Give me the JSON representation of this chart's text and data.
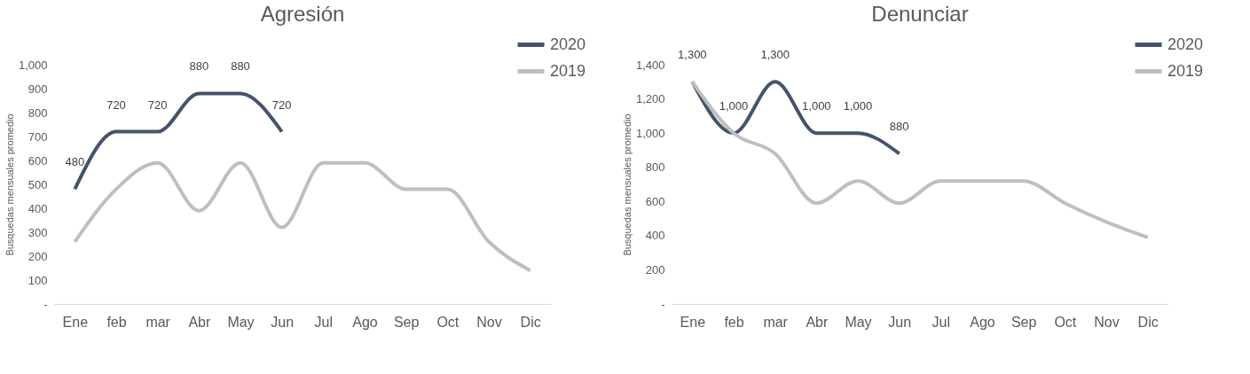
{
  "chart_data": [
    {
      "type": "line",
      "title": "Agresión",
      "ylabel": "Busquedas mensuales promedio",
      "categories": [
        "Ene",
        "feb",
        "mar",
        "Abr",
        "May",
        "Jun",
        "Jul",
        "Ago",
        "Sep",
        "Oct",
        "Nov",
        "Dic"
      ],
      "series": [
        {
          "name": "2020",
          "color": "#44546a",
          "values": [
            480,
            720,
            720,
            880,
            880,
            720,
            null,
            null,
            null,
            null,
            null,
            null
          ],
          "value_labels": [
            "480",
            "720",
            "720",
            "880",
            "880",
            "720",
            null,
            null,
            null,
            null,
            null,
            null
          ]
        },
        {
          "name": "2019",
          "color": "#bfbfbf",
          "values": [
            260,
            480,
            590,
            390,
            590,
            320,
            590,
            590,
            480,
            480,
            260,
            140
          ]
        }
      ],
      "ylim": [
        0,
        1000
      ],
      "yticks": [
        {
          "value": 0,
          "label": "-"
        },
        {
          "value": 100,
          "label": "100"
        },
        {
          "value": 200,
          "label": "200"
        },
        {
          "value": 300,
          "label": "300"
        },
        {
          "value": 400,
          "label": "400"
        },
        {
          "value": 500,
          "label": "500"
        },
        {
          "value": 600,
          "label": "600"
        },
        {
          "value": 700,
          "label": "700"
        },
        {
          "value": 800,
          "label": "800"
        },
        {
          "value": 900,
          "label": "900"
        },
        {
          "value": 1000,
          "label": "1,000"
        }
      ],
      "grid": false,
      "legend": "top right",
      "marker": "none",
      "line_style": "solid"
    },
    {
      "type": "line",
      "title": "Denunciar",
      "ylabel": "Busquedas mensuales promedio",
      "categories": [
        "Ene",
        "feb",
        "mar",
        "Abr",
        "May",
        "Jun",
        "Jul",
        "Ago",
        "Sep",
        "Oct",
        "Nov",
        "Dic"
      ],
      "series": [
        {
          "name": "2020",
          "color": "#44546a",
          "values": [
            1300,
            1000,
            1300,
            1000,
            1000,
            880,
            null,
            null,
            null,
            null,
            null,
            null
          ],
          "value_labels": [
            "1,300",
            "1,000",
            "1,300",
            "1,000",
            "1,000",
            "880",
            null,
            null,
            null,
            null,
            null,
            null
          ]
        },
        {
          "name": "2019",
          "color": "#bfbfbf",
          "values": [
            1300,
            1000,
            880,
            590,
            720,
            590,
            720,
            720,
            720,
            590,
            480,
            390
          ]
        }
      ],
      "ylim": [
        0,
        1400
      ],
      "yticks": [
        {
          "value": 0,
          "label": "-"
        },
        {
          "value": 200,
          "label": "200"
        },
        {
          "value": 400,
          "label": "400"
        },
        {
          "value": 600,
          "label": "600"
        },
        {
          "value": 800,
          "label": "800"
        },
        {
          "value": 1000,
          "label": "1,000"
        },
        {
          "value": 1200,
          "label": "1,200"
        },
        {
          "value": 1400,
          "label": "1,400"
        }
      ],
      "grid": false,
      "legend": "top right",
      "marker": "none",
      "line_style": "solid"
    }
  ]
}
